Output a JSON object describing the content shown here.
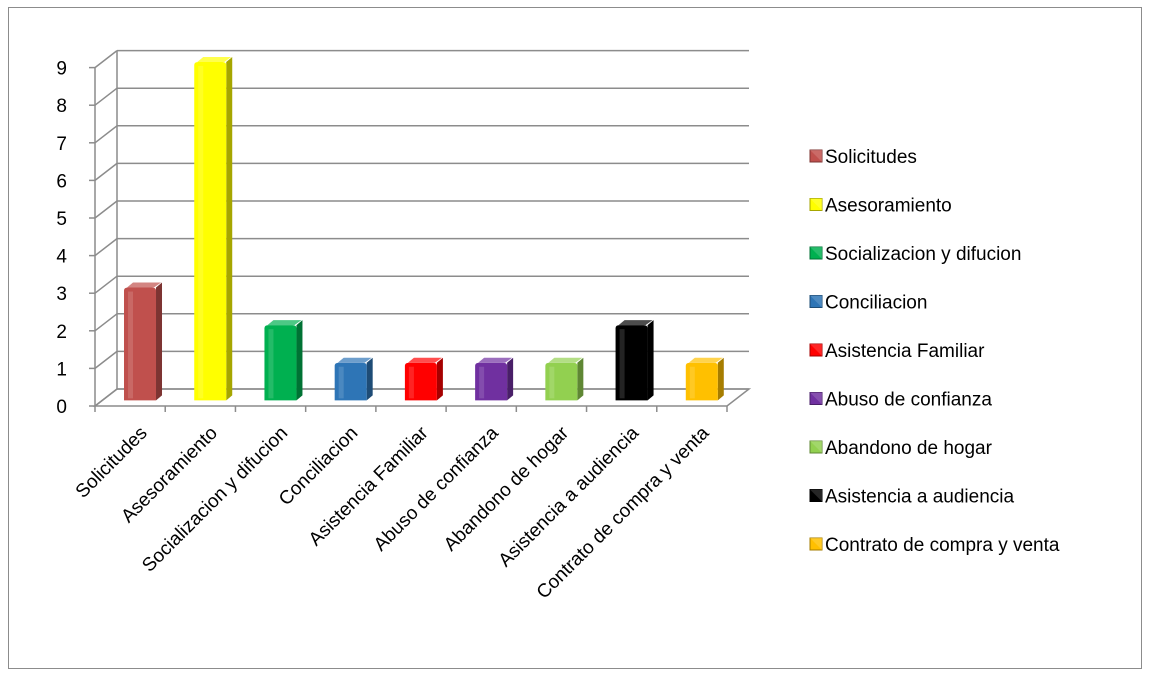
{
  "chart_data": {
    "type": "bar",
    "title": "",
    "xlabel": "",
    "ylabel": "",
    "ylim": [
      0,
      9
    ],
    "yticks": [
      0,
      1,
      2,
      3,
      4,
      5,
      6,
      7,
      8,
      9
    ],
    "grid": true,
    "legend_position": "right",
    "style": "3d-column",
    "categories": [
      "Solicitudes",
      "Asesoramiento",
      "Socializacion y difucion",
      "Conciliacion",
      "Asistencia Familiar",
      "Abuso de confianza",
      "Abandono de hogar",
      "Asistencia a audiencia",
      "Contrato de compra y venta"
    ],
    "values": [
      3,
      9,
      2,
      1,
      1,
      1,
      1,
      2,
      1
    ],
    "colors": [
      "#c0504d",
      "#ffff00",
      "#00b050",
      "#2e75b6",
      "#ff0000",
      "#7030a0",
      "#92d050",
      "#000000",
      "#ffc000"
    ]
  }
}
